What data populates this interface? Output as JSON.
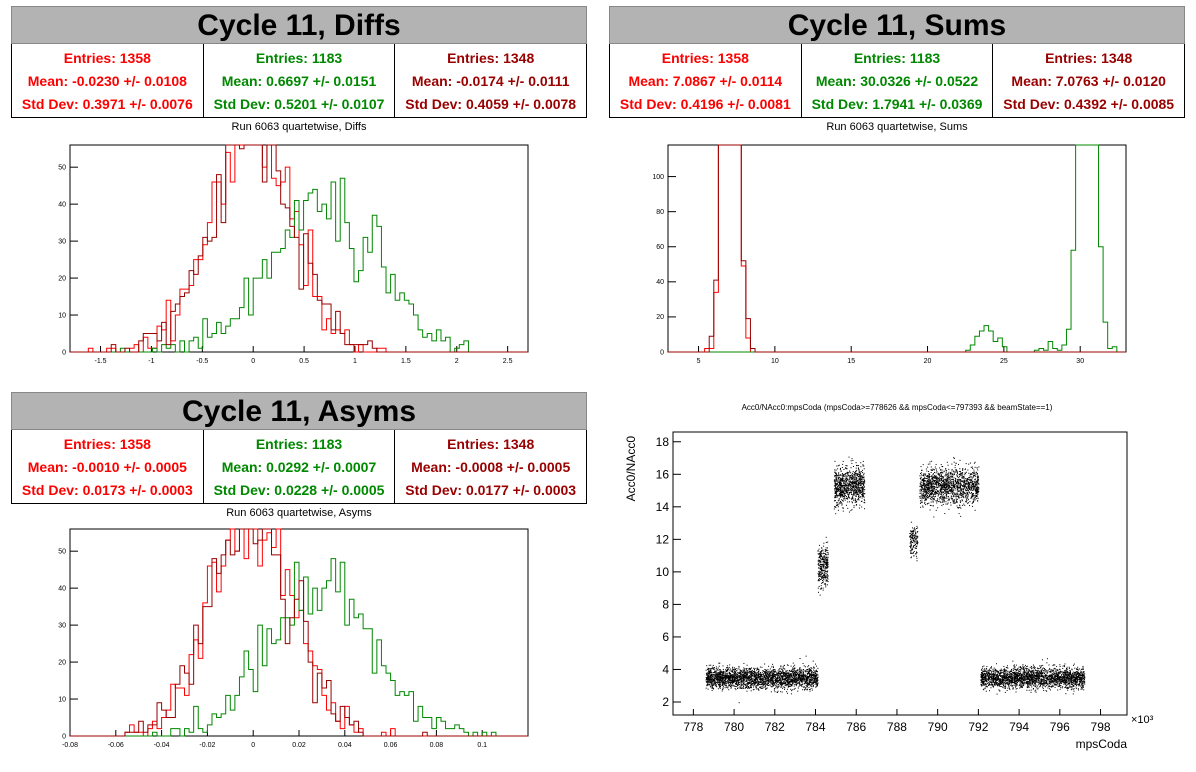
{
  "panels": {
    "diffs": {
      "title": "Cycle 11, Diffs",
      "subtitle": "Run 6063 quartetwise, Diffs",
      "stats": [
        {
          "entries": "Entries: 1358",
          "mean": "Mean: -0.0230 +/- 0.0108",
          "std": "Std Dev: 0.3971 +/- 0.0076",
          "color": "#ff0000"
        },
        {
          "entries": "Entries: 1183",
          "mean": "Mean: 0.6697 +/- 0.0151",
          "std": "Std Dev: 0.5201 +/- 0.0107",
          "color": "#008800"
        },
        {
          "entries": "Entries: 1348",
          "mean": "Mean: -0.0174 +/- 0.0111",
          "std": "Std Dev: 0.4059 +/- 0.0078",
          "color": "#990000"
        }
      ]
    },
    "sums": {
      "title": "Cycle 11, Sums",
      "subtitle": "Run 6063 quartetwise, Sums",
      "stats": [
        {
          "entries": "Entries: 1358",
          "mean": "Mean: 7.0867 +/- 0.0114",
          "std": "Std Dev: 0.4196 +/- 0.0081",
          "color": "#ff0000"
        },
        {
          "entries": "Entries: 1183",
          "mean": "Mean: 30.0326 +/- 0.0522",
          "std": "Std Dev: 1.7941 +/- 0.0369",
          "color": "#008800"
        },
        {
          "entries": "Entries: 1348",
          "mean": "Mean: 7.0763 +/- 0.0120",
          "std": "Std Dev: 0.4392 +/- 0.0085",
          "color": "#990000"
        }
      ]
    },
    "asyms": {
      "title": "Cycle 11, Asyms",
      "subtitle": "Run 6063 quartetwise, Asyms",
      "stats": [
        {
          "entries": "Entries: 1358",
          "mean": "Mean: -0.0010 +/- 0.0005",
          "std": "Std Dev: 0.0173 +/- 0.0003",
          "color": "#ff0000"
        },
        {
          "entries": "Entries: 1183",
          "mean": "Mean: 0.0292 +/- 0.0007",
          "std": "Std Dev: 0.0228 +/- 0.0005",
          "color": "#008800"
        },
        {
          "entries": "Entries: 1348",
          "mean": "Mean: -0.0008 +/- 0.0005",
          "std": "Std Dev: 0.0177 +/- 0.0003",
          "color": "#990000"
        }
      ]
    },
    "scatter": {
      "subtitle": "Acc0/NAcc0:mpsCoda (mpsCoda>=778626 && mpsCoda<=797393 && beamState==1)"
    }
  },
  "chart_data": [
    {
      "type": "histogram",
      "name": "diffs",
      "xlim": [
        -1.8,
        2.7
      ],
      "ylim": [
        0,
        56
      ],
      "xticks": [
        "-1.5",
        "-1",
        "-0.5",
        "0",
        "0.5",
        "1",
        "1.5",
        "2",
        "2.5"
      ],
      "xtick_values": [
        -1.5,
        -1,
        -0.5,
        0,
        0.5,
        1,
        1.5,
        2,
        2.5
      ],
      "yticks": [
        "0",
        "10",
        "20",
        "30",
        "40",
        "50"
      ],
      "ytick_values": [
        0,
        10,
        20,
        30,
        40,
        50
      ],
      "series": [
        {
          "color": "#ff0000",
          "mean": -0.023,
          "std": 0.3971,
          "entries": 1358
        },
        {
          "color": "#008800",
          "mean": 0.6697,
          "std": 0.5201,
          "entries": 1183
        },
        {
          "color": "#990000",
          "mean": -0.0174,
          "std": 0.4059,
          "entries": 1348
        }
      ]
    },
    {
      "type": "histogram",
      "name": "sums",
      "xlim": [
        3,
        33
      ],
      "ylim": [
        0,
        118
      ],
      "xticks": [
        "5",
        "10",
        "15",
        "20",
        "25",
        "30"
      ],
      "xtick_values": [
        5,
        10,
        15,
        20,
        25,
        30
      ],
      "yticks": [
        "0",
        "20",
        "40",
        "60",
        "80",
        "100"
      ],
      "ytick_values": [
        0,
        20,
        40,
        60,
        80,
        100
      ],
      "series": [
        {
          "color": "#ff0000",
          "mean": 7.0867,
          "std": 0.4196,
          "entries": 1358
        },
        {
          "color": "#008800",
          "mean": 30.0326,
          "std": 1.7941,
          "entries": 1183
        },
        {
          "color": "#990000",
          "mean": 7.0763,
          "std": 0.4392,
          "entries": 1348
        }
      ]
    },
    {
      "type": "histogram",
      "name": "asyms",
      "xlim": [
        -0.08,
        0.12
      ],
      "ylim": [
        0,
        56
      ],
      "xticks": [
        "-0.08",
        "-0.06",
        "-0.04",
        "-0.02",
        "0",
        "0.02",
        "0.04",
        "0.06",
        "0.08",
        "0.1"
      ],
      "xtick_values": [
        -0.08,
        -0.06,
        -0.04,
        -0.02,
        0,
        0.02,
        0.04,
        0.06,
        0.08,
        0.1
      ],
      "yticks": [
        "0",
        "10",
        "20",
        "30",
        "40",
        "50"
      ],
      "ytick_values": [
        0,
        10,
        20,
        30,
        40,
        50
      ],
      "series": [
        {
          "color": "#ff0000",
          "mean": -0.001,
          "std": 0.0173,
          "entries": 1358
        },
        {
          "color": "#008800",
          "mean": 0.0292,
          "std": 0.0228,
          "entries": 1183
        },
        {
          "color": "#990000",
          "mean": -0.0008,
          "std": 0.0177,
          "entries": 1348
        }
      ]
    },
    {
      "type": "scatter",
      "name": "acc0-vs-mpscoda",
      "xlabel": "mpsCoda",
      "ylabel": "Acc0/NAcc0",
      "xscale_label": "×10³",
      "xlim": [
        777,
        799.3
      ],
      "ylim": [
        1.2,
        18.6
      ],
      "xticks": [
        "778",
        "780",
        "782",
        "784",
        "786",
        "788",
        "790",
        "792",
        "794",
        "796",
        "798"
      ],
      "xtick_values": [
        778,
        780,
        782,
        784,
        786,
        788,
        790,
        792,
        794,
        796,
        798
      ],
      "yticks": [
        "2",
        "4",
        "6",
        "8",
        "10",
        "12",
        "14",
        "16",
        "18"
      ],
      "ytick_values": [
        2,
        4,
        6,
        8,
        10,
        12,
        14,
        16,
        18
      ],
      "clusters": [
        {
          "x": [
            778.6,
            784.1
          ],
          "y_center": 3.5,
          "y_spread": 0.45,
          "count": 2600
        },
        {
          "x": [
            784.1,
            784.6
          ],
          "y_center": 10.4,
          "y_spread": 0.9,
          "count": 300
        },
        {
          "x": [
            784.9,
            786.4
          ],
          "y_center": 15.3,
          "y_spread": 0.8,
          "count": 900
        },
        {
          "x": [
            788.6,
            789.0
          ],
          "y_center": 11.9,
          "y_spread": 0.7,
          "count": 150
        },
        {
          "x": [
            789.1,
            792.0
          ],
          "y_center": 15.3,
          "y_spread": 0.8,
          "count": 1500
        },
        {
          "x": [
            792.1,
            797.2
          ],
          "y_center": 3.5,
          "y_spread": 0.45,
          "count": 2400
        }
      ]
    }
  ]
}
